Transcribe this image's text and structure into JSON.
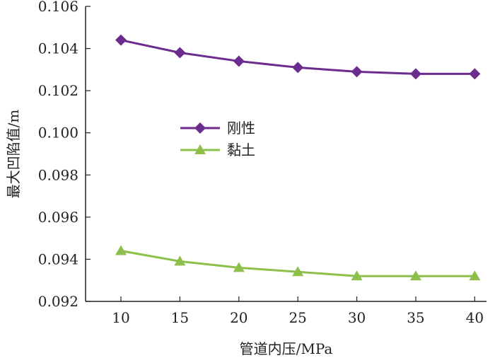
{
  "chart_data": {
    "type": "line",
    "title": "",
    "xlabel": "管道内压/MPa",
    "ylabel": "最大凹陷值/m",
    "x": [
      10,
      15,
      20,
      25,
      30,
      35,
      40
    ],
    "xticks": [
      10,
      15,
      20,
      25,
      30,
      35,
      40
    ],
    "xlim": [
      7,
      41
    ],
    "ylim": [
      0.092,
      0.106
    ],
    "yticks": [
      "0.092",
      "0.094",
      "0.096",
      "0.098",
      "0.100",
      "0.102",
      "0.104",
      "0.106"
    ],
    "grid": false,
    "legend": "center-left",
    "series": [
      {
        "name": "刚性",
        "values": [
          0.1044,
          0.1038,
          0.1034,
          0.1031,
          0.1029,
          0.1028,
          0.1028
        ],
        "color": "#6b2c8e",
        "marker": "diamond"
      },
      {
        "name": "黏土",
        "values": [
          0.0944,
          0.0939,
          0.0936,
          0.0934,
          0.0932,
          0.0932,
          0.0932
        ],
        "color": "#8cc04a",
        "marker": "triangle"
      }
    ]
  }
}
